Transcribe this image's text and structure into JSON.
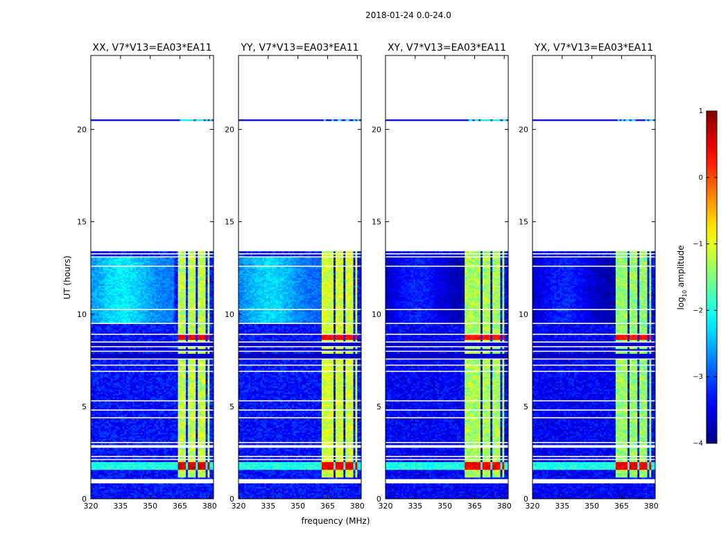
{
  "chart_data": {
    "type": "heatmap",
    "suptitle": "2018-01-24 0.0-24.0",
    "xlabel": "frequency (MHz)",
    "ylabel": "UT (hours)",
    "xlim": [
      320,
      382
    ],
    "ylim": [
      0,
      24
    ],
    "xticks": [
      320,
      335,
      350,
      365,
      380
    ],
    "yticks": [
      0,
      5,
      10,
      15,
      20
    ],
    "panels": [
      {
        "title": "XX, V7*V13=EA03*EA11",
        "pol": "XX",
        "base_level": -3.3,
        "low_band_level": -2.3,
        "rfi_level": -1.2,
        "rfi_start": 364,
        "burst_level": 0.55
      },
      {
        "title": "YY, V7*V13=EA03*EA11",
        "pol": "YY",
        "base_level": -3.3,
        "low_band_level": -2.4,
        "rfi_level": -1.1,
        "rfi_start": 362,
        "burst_level": 0.5
      },
      {
        "title": "XY, V7*V13=EA03*EA11",
        "pol": "XY",
        "base_level": -3.4,
        "low_band_level": -3.3,
        "rfi_level": -1.3,
        "rfi_start": 360,
        "burst_level": 0.45
      },
      {
        "title": "YX, V7*V13=EA03*EA11",
        "pol": "YX",
        "base_level": -3.4,
        "low_band_level": -3.3,
        "rfi_level": -1.4,
        "rfi_start": 362,
        "burst_level": 0.45
      }
    ],
    "rfi_gaps_mhz": [
      [
        368.5,
        369.5
      ],
      [
        373.5,
        374.5
      ],
      [
        378.5,
        379.5
      ]
    ],
    "flagged_hours": [
      [
        0.05,
        0.12
      ],
      [
        0.8,
        1.12
      ],
      [
        1.4,
        1.45
      ],
      [
        1.55,
        1.6
      ],
      [
        2.1,
        2.2
      ],
      [
        2.3,
        2.35
      ],
      [
        2.8,
        2.92
      ],
      [
        3.0,
        3.1
      ],
      [
        3.25,
        3.3
      ],
      [
        3.5,
        3.53
      ],
      [
        4.35,
        4.4
      ],
      [
        4.8,
        4.85
      ],
      [
        5.3,
        5.33
      ],
      [
        6.5,
        6.55
      ],
      [
        6.9,
        6.95
      ],
      [
        7.2,
        7.25
      ],
      [
        7.5,
        7.6
      ],
      [
        7.95,
        8.0
      ],
      [
        8.2,
        8.25
      ],
      [
        8.5,
        8.55
      ],
      [
        8.85,
        9.0
      ],
      [
        9.5,
        9.55
      ],
      [
        10.2,
        10.28
      ],
      [
        12.6,
        12.65
      ],
      [
        12.8,
        12.85
      ],
      [
        13.1,
        13.15
      ],
      [
        13.25,
        13.3
      ],
      [
        13.4,
        20.4
      ],
      [
        20.6,
        24.0
      ]
    ],
    "dark_bands_hours": [
      [
        7.65,
        7.9
      ],
      [
        8.05,
        8.15
      ],
      [
        8.3,
        8.45
      ]
    ],
    "colorbar": {
      "label_prefix": "log",
      "label_sub": "10",
      "label_suffix": " amplitude",
      "range": [
        -4,
        1
      ],
      "ticks": [
        -4,
        -3,
        -2,
        -1,
        0,
        1
      ],
      "tick_labels": [
        "−4",
        "−3",
        "−2",
        "−1",
        "0",
        "1"
      ],
      "colormap": "jet"
    }
  }
}
